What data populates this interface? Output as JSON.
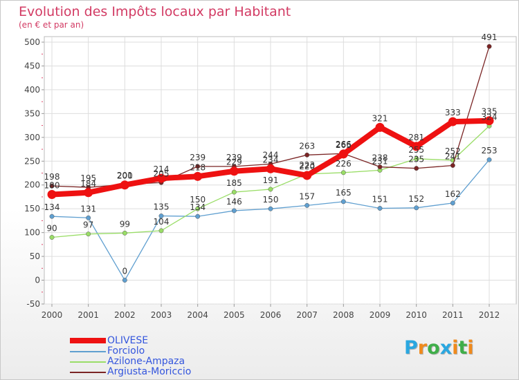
{
  "title": "Evolution des Impôts locaux par Habitant",
  "subtitle": "(en € et par an)",
  "brand": {
    "letters": [
      "P",
      "r",
      "o",
      "x",
      "i",
      "t",
      "i"
    ],
    "colors": [
      "#2aa7e0",
      "#f08a1c",
      "#3fae49",
      "#2aa7e0",
      "#f08a1c",
      "#3fae49",
      "#f08a1c"
    ]
  },
  "chart_data": {
    "type": "line",
    "title": "Evolution des Impôts locaux par Habitant",
    "subtitle": "(en € et par an)",
    "xlabel": "",
    "ylabel": "",
    "categories": [
      "2000",
      "2001",
      "2002",
      "2003",
      "2004",
      "2005",
      "2006",
      "2007",
      "2008",
      "2009",
      "2010",
      "2011",
      "2012"
    ],
    "ylim": [
      -50,
      500
    ],
    "yticks": [
      "-50",
      "0",
      "50",
      "100",
      "150",
      "200",
      "250",
      "300",
      "350",
      "400",
      "450",
      "500"
    ],
    "grid": true,
    "legend_position": "bottom-left",
    "series": [
      {
        "name": "OLIVESE",
        "color": "#ee1111",
        "values": [
          180,
          184,
          200,
          214,
          218,
          229,
          234,
          220,
          265,
          321,
          281,
          333,
          335
        ],
        "labels": [
          "180",
          "184",
          "200",
          "214",
          "218",
          "229",
          "234",
          "220",
          "265",
          "321",
          "281",
          "333",
          "335"
        ]
      },
      {
        "name": "Forciolo",
        "color": "#5f9fd0",
        "values": [
          134,
          131,
          0,
          135,
          134,
          146,
          150,
          157,
          165,
          151,
          152,
          162,
          253
        ],
        "labels": [
          "134",
          "131",
          "0",
          "135",
          "134",
          "146",
          "150",
          "157",
          "165",
          "151",
          "152",
          "162",
          "253"
        ]
      },
      {
        "name": "Azilone-Ampaza",
        "color": "#99dd66",
        "values": [
          90,
          97,
          99,
          104,
          150,
          185,
          191,
          223,
          226,
          231,
          255,
          252,
          324
        ],
        "labels": [
          "90",
          "97",
          "99",
          "104",
          "150",
          "185",
          "191",
          "223",
          "226",
          "231",
          "255",
          "252",
          "324"
        ]
      },
      {
        "name": "Argiusta-Moriccio",
        "color": "#7a2424",
        "values": [
          198,
          195,
          201,
          205,
          239,
          239,
          244,
          263,
          266,
          238,
          235,
          241,
          491
        ],
        "labels": [
          "198",
          "195",
          "201",
          "205",
          "239",
          "239",
          "244",
          "263",
          "266",
          "238",
          "235",
          "241",
          "491"
        ]
      }
    ]
  }
}
